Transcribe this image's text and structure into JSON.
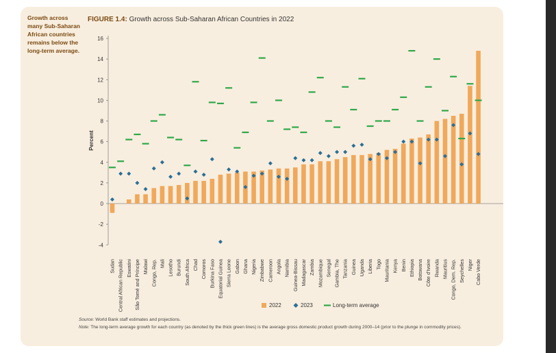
{
  "sidenote": "Growth across many Sub-Saharan African countries remains below the long-term average.",
  "figure": {
    "label": "FIGURE 1.4:",
    "title": "Growth across Sub-Saharan African Countries in 2022"
  },
  "source_label": "Source:",
  "source_text": "World Bank staff estimates and projections.",
  "note_label": "Note:",
  "note_text": "The long-term average growth for each country (as denoted by the thick green lines) is the average gross domestic product growth during 2000–14 (prior to the plunge in commodity prices).",
  "colors": {
    "bar": "#f0a85a",
    "marker": "#2a6f97",
    "line": "#2ea84a",
    "panel": "#f8eedf",
    "axis": "#888888"
  },
  "chart_data": {
    "type": "bar",
    "title": "Growth across Sub-Saharan African Countries in 2022",
    "ylabel": "Percent",
    "ylim": [
      -4,
      16
    ],
    "yticks": [
      -4,
      -2,
      0,
      2,
      4,
      6,
      8,
      10,
      12,
      14,
      16
    ],
    "categories": [
      "Sudan",
      "Central African Republic",
      "Eswatini",
      "São Tomé and Príncipe",
      "Malawi",
      "Congo, Rep.",
      "Mali",
      "Lesotho",
      "Burundi",
      "South Africa",
      "Chad",
      "Comoros",
      "Burkina Faso",
      "Equatorial Guinea",
      "Sierra Leone",
      "Gabon",
      "Ghana",
      "Nigeria",
      "Zimbabwe",
      "Cameroon",
      "Angola",
      "Namibia",
      "Guinea-Bissau",
      "Madagascar",
      "Zambia",
      "Mozambique",
      "Senegal",
      "Gambia, The",
      "Tanzania",
      "Guinea",
      "Uganda",
      "Liberia",
      "Togo",
      "Mauritania",
      "Kenya",
      "Benin",
      "Ethiopia",
      "Botswana",
      "Côte d'Ivoire",
      "Rwanda",
      "Mauritius",
      "Congo, Dem. Rep.",
      "Seychelles",
      "Niger",
      "Cabo Verde"
    ],
    "series": [
      {
        "name": "2022",
        "type": "bar",
        "values": [
          -0.9,
          0.0,
          0.4,
          0.9,
          0.9,
          1.5,
          1.7,
          1.7,
          1.8,
          2.0,
          2.2,
          2.2,
          2.4,
          2.8,
          2.9,
          3.0,
          3.1,
          3.1,
          3.2,
          3.3,
          3.4,
          3.4,
          3.5,
          3.8,
          3.8,
          4.1,
          4.1,
          4.3,
          4.5,
          4.7,
          4.7,
          4.8,
          4.9,
          5.2,
          5.3,
          5.8,
          6.3,
          6.4,
          6.7,
          8.0,
          8.2,
          8.5,
          8.7,
          11.4,
          14.8
        ]
      },
      {
        "name": "2023",
        "type": "scatter",
        "values": [
          0.4,
          2.9,
          2.9,
          2.0,
          1.4,
          3.4,
          4.0,
          2.6,
          2.9,
          0.5,
          3.1,
          2.8,
          4.3,
          -3.7,
          3.3,
          3.1,
          1.6,
          2.7,
          2.9,
          3.9,
          2.6,
          2.4,
          4.4,
          4.2,
          4.2,
          4.9,
          4.6,
          5.0,
          5.0,
          5.6,
          5.7,
          4.3,
          4.8,
          4.4,
          5.0,
          6.0,
          6.0,
          3.9,
          6.2,
          6.2,
          4.6,
          7.6,
          3.8,
          6.8,
          4.8
        ]
      },
      {
        "name": "Long-term average",
        "type": "marker-line",
        "values": [
          3.5,
          4.1,
          6.2,
          6.7,
          5.8,
          8.0,
          8.6,
          6.4,
          6.2,
          3.7,
          11.8,
          6.1,
          9.8,
          9.7,
          11.2,
          5.4,
          6.9,
          9.8,
          14.1,
          8.0,
          10.0,
          7.2,
          7.4,
          6.9,
          10.8,
          12.2,
          8.0,
          7.4,
          11.3,
          9.1,
          12.1,
          7.5,
          8.0,
          8.0,
          9.1,
          10.3,
          14.8,
          8.0,
          11.3,
          14.0,
          9.0,
          12.3,
          6.3,
          11.6,
          10.0
        ]
      }
    ],
    "legend": [
      "2022",
      "2023",
      "Long-term average"
    ],
    "legend_position": "bottom",
    "grid": false
  }
}
